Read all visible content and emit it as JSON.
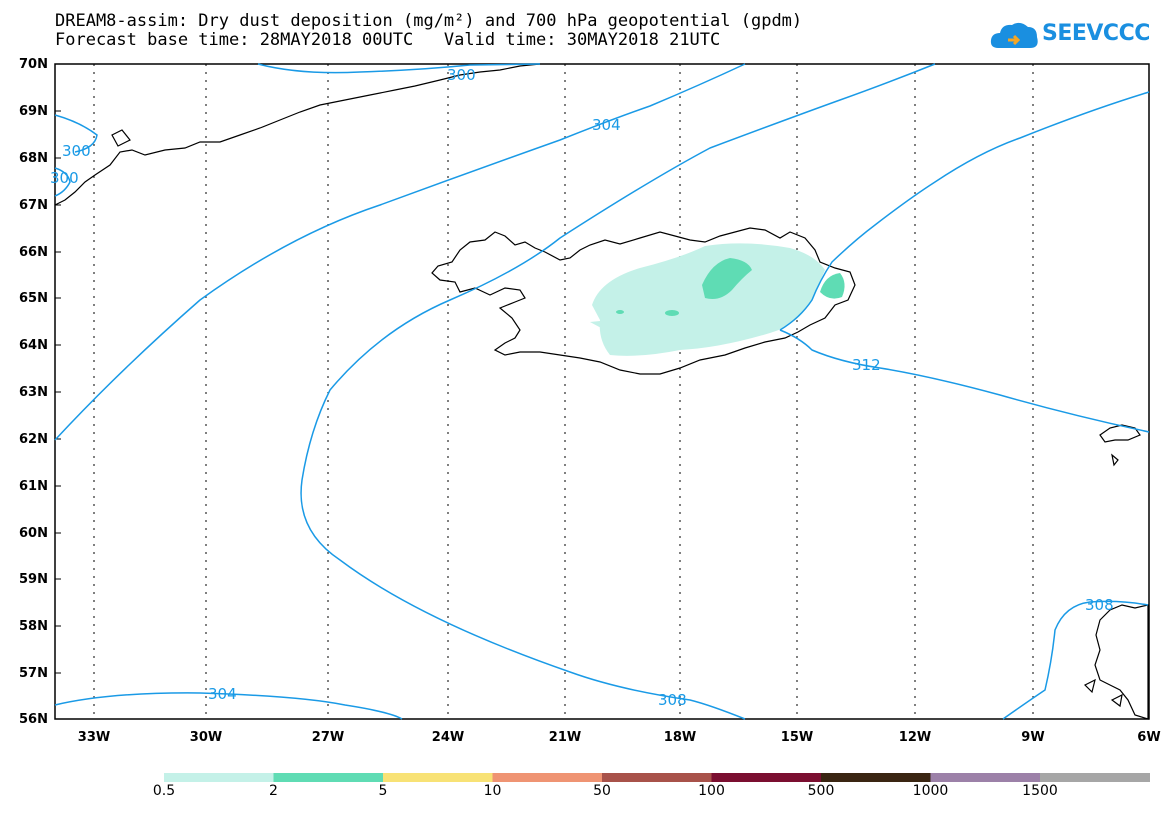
{
  "title_line1": "DREAM8-assim: Dry dust deposition (mg/m²) and 700 hPa geopotential (gpdm)",
  "title_line2": "Forecast base time: 28MAY2018 00UTC   Valid time: 30MAY2018 21UTC",
  "logo_text": "SEEVCCC",
  "lat_labels": [
    "70N",
    "69N",
    "68N",
    "67N",
    "66N",
    "65N",
    "64N",
    "63N",
    "62N",
    "61N",
    "60N",
    "59N",
    "58N",
    "57N",
    "56N"
  ],
  "lon_labels": [
    "33W",
    "30W",
    "27W",
    "24W",
    "21W",
    "18W",
    "15W",
    "12W",
    "9W",
    "6W"
  ],
  "contour_labels": [
    "300",
    "300",
    "304",
    "304",
    "308",
    "308",
    "312",
    "300",
    "300"
  ],
  "legend": {
    "colors": [
      "#c4f1e8",
      "#5fdcb4",
      "#f8e275",
      "#ef9473",
      "#a8524a",
      "#7b0e30",
      "#3a2512",
      "#9c81a8",
      "#a6a6a6"
    ],
    "labels": [
      "0.5",
      "2",
      "5",
      "10",
      "50",
      "100",
      "500",
      "1000",
      "1500"
    ]
  },
  "colors": {
    "contour": "#1a9ae6",
    "coast": "#000000",
    "logo": "#1a8fe0"
  }
}
